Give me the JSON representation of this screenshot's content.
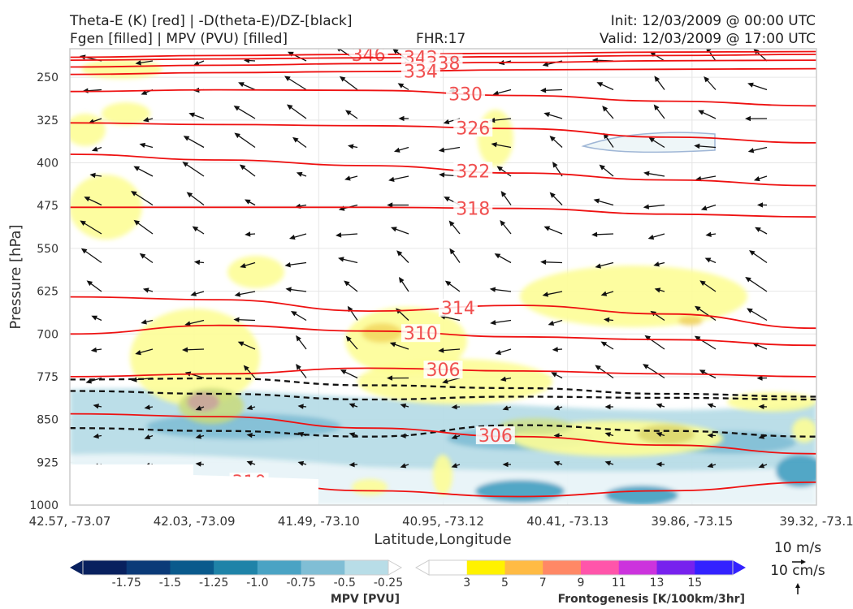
{
  "header": {
    "title_line1": "Theta-E (K) [red] | -D(theta-E)/DZ-[black]",
    "title_line2": "Fgen [filled] | MPV (PVU) [filled]",
    "fhr": "FHR:17",
    "init": "Init: 12/03/2009 @ 00:00 UTC",
    "valid": "Valid: 12/03/2009 @ 17:00 UTC"
  },
  "colors": {
    "theta_e": "#ee1111",
    "ddz": "#111111",
    "frame": "#cccccc",
    "mpv_levels": [
      "#08205e",
      "#0b3a78",
      "#0a5a8c",
      "#1f83a8",
      "#4aa3c4",
      "#80bed5",
      "#b8dde7",
      "#ffffff"
    ],
    "fgen_levels": [
      "#ffffff",
      "#fff200",
      "#ffbb44",
      "#ff8866",
      "#ff55aa",
      "#cc33dd",
      "#7722ee",
      "#3322ff"
    ]
  },
  "chart_data": {
    "type": "cross-section",
    "ylabel": "Pressure [hPa]",
    "xlabel": "Latitude,Longitude",
    "ylim": [
      1000,
      200
    ],
    "y_ticks": [
      250,
      325,
      400,
      475,
      550,
      625,
      700,
      775,
      850,
      925,
      1000
    ],
    "x_ticks": [
      "42.57, -73.07",
      "42.03, -73.09",
      "41.49, -73.10",
      "40.95, -73.12",
      "40.41, -73.13",
      "39.86, -73.15",
      "39.32, -73.1"
    ],
    "grid": true,
    "theta_e_contours": [
      {
        "label": "346",
        "p": [
          215,
          212,
          210,
          208,
          206,
          205
        ]
      },
      {
        "label": "342",
        "p": [
          220,
          218,
          216,
          214,
          212,
          210
        ]
      },
      {
        "label": "338",
        "p": [
          232,
          229,
          226,
          224,
          221,
          220
        ]
      },
      {
        "label": "334",
        "p": [
          245,
          242,
          240,
          237,
          236,
          235
        ]
      },
      {
        "label": "330",
        "p": [
          275,
          272,
          273,
          282,
          292,
          300
        ]
      },
      {
        "label": "326",
        "p": [
          330,
          333,
          335,
          340,
          355,
          365
        ]
      },
      {
        "label": "322",
        "p": [
          385,
          395,
          405,
          418,
          430,
          440
        ]
      },
      {
        "label": "318",
        "p": [
          478,
          478,
          478,
          480,
          490,
          495
        ]
      },
      {
        "label": "314",
        "p": [
          635,
          640,
          660,
          650,
          665,
          690
        ]
      },
      {
        "label": "310",
        "p": [
          700,
          685,
          695,
          705,
          710,
          720
        ]
      },
      {
        "label": "306",
        "p": [
          775,
          770,
          760,
          765,
          770,
          775
        ]
      },
      {
        "label": "306",
        "p": [
          840,
          845,
          865,
          880,
          895,
          910
        ]
      },
      {
        "label": "310",
        "p": [
          940,
          955,
          975,
          985,
          975,
          960
        ]
      }
    ],
    "ddz_contours": [
      {
        "p": [
          780,
          778,
          790,
          795,
          805,
          810
        ]
      },
      {
        "p": [
          800,
          805,
          815,
          810,
          812,
          815
        ]
      },
      {
        "p": [
          865,
          870,
          880,
          860,
          870,
          880
        ]
      }
    ],
    "mpv_colorbar": {
      "label": "MPV [PVU]",
      "ticks": [
        "-1.75",
        "-1.5",
        "-1.25",
        "-1.0",
        "-0.75",
        "-0.5",
        "-0.25"
      ]
    },
    "fgen_colorbar": {
      "label": "Frontogenesis [K/100km/3hr]",
      "ticks": [
        "3",
        "5",
        "7",
        "9",
        "11",
        "13",
        "15"
      ]
    },
    "vector_key": {
      "horizontal": "10 m/s",
      "vertical": "10 cm/s"
    }
  }
}
